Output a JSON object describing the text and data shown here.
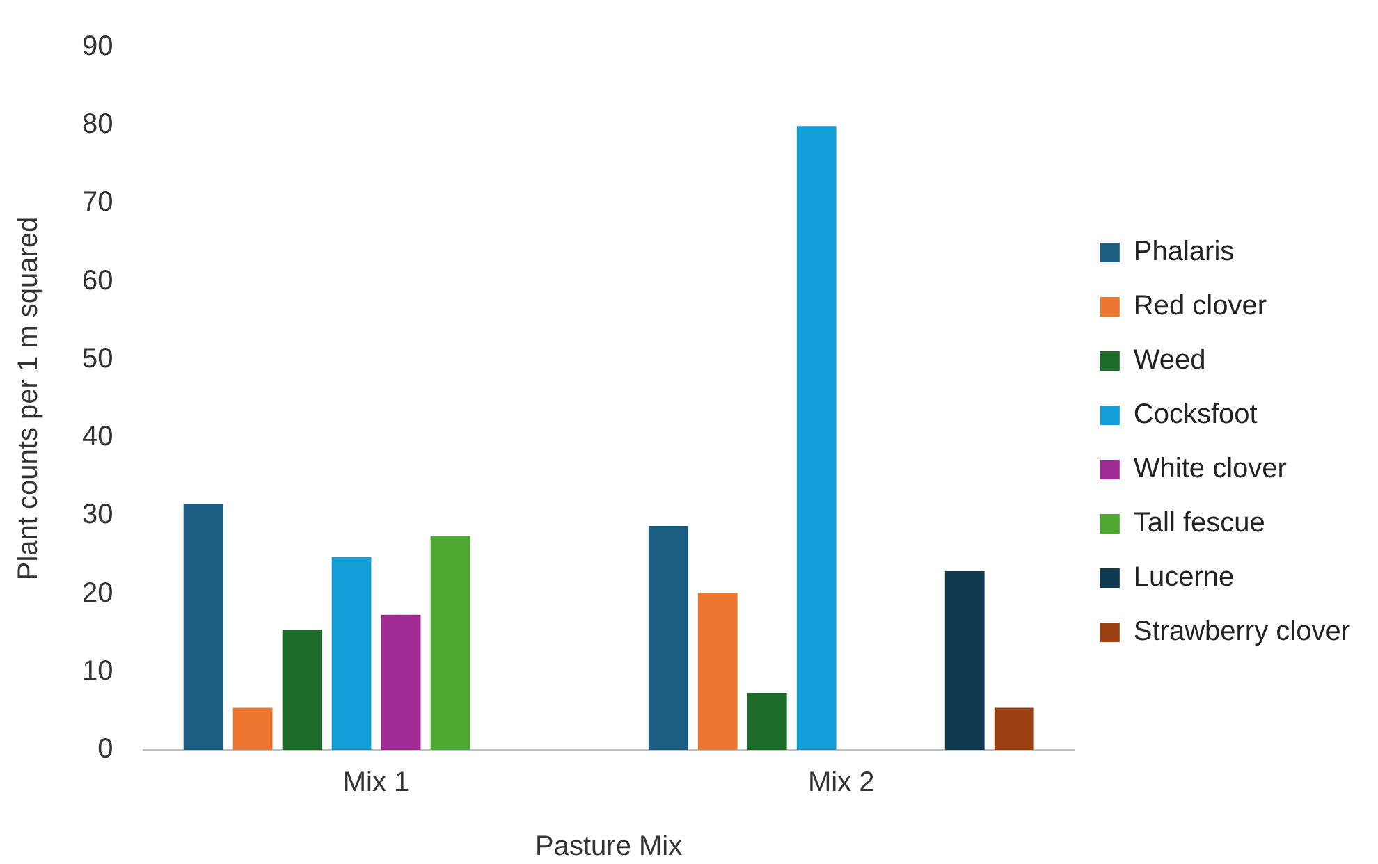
{
  "chart_data": {
    "type": "bar",
    "xlabel": "Pasture Mix",
    "ylabel": "Plant counts per 1 m squared",
    "categories": [
      "Mix 1",
      "Mix 2"
    ],
    "series": [
      {
        "name": "Phalaris",
        "color": "#1b5e81",
        "values": [
          31.5,
          28.7
        ]
      },
      {
        "name": "Red clover",
        "color": "#ed7631",
        "values": [
          5.4,
          20.1
        ]
      },
      {
        "name": "Weed",
        "color": "#1c6b28",
        "values": [
          15.4,
          7.3
        ]
      },
      {
        "name": "Cocksfoot",
        "color": "#149ed8",
        "values": [
          24.7,
          79.9
        ]
      },
      {
        "name": "White clover",
        "color": "#a02b93",
        "values": [
          17.3,
          null
        ]
      },
      {
        "name": "Tall fescue",
        "color": "#4ea72e",
        "values": [
          27.4,
          null
        ]
      },
      {
        "name": "Lucerne",
        "color": "#0f3a50",
        "values": [
          null,
          22.9
        ]
      },
      {
        "name": "Strawberry clover",
        "color": "#9a3f10",
        "values": [
          null,
          5.4
        ]
      }
    ],
    "ylim": [
      0,
      90
    ],
    "yticks": [
      0,
      10,
      20,
      30,
      40,
      50,
      60,
      70,
      80,
      90
    ],
    "grid": false,
    "legend": "right"
  }
}
